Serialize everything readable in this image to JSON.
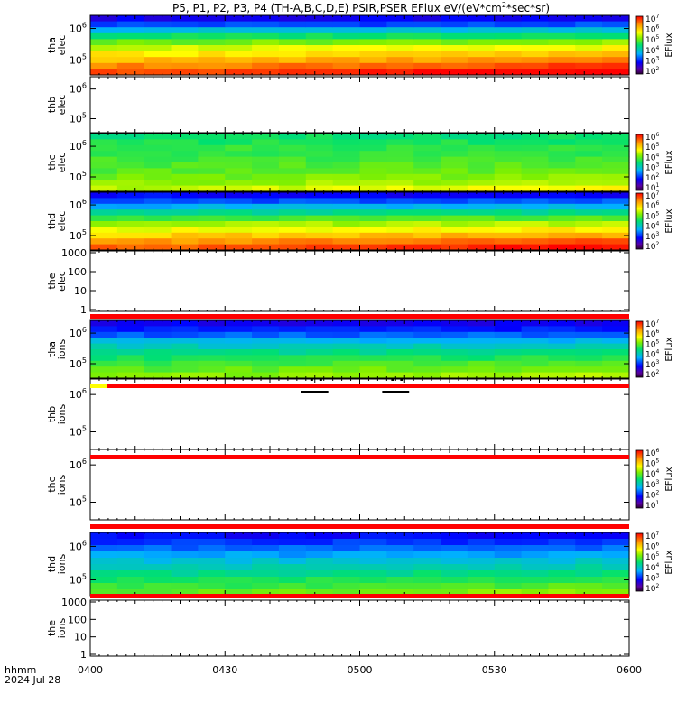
{
  "chart_data": {
    "type": "heatmap",
    "title": "P5, P1, P2, P3, P4 (TH-A,B,C,D,E) PSIR,PSER EFlux eV/(eV*cm",
    "title_sup": "2",
    "title_end": "*sec*sr)",
    "x_axis": {
      "ticks": [
        "0400",
        "0430",
        "0500",
        "0530",
        "0600"
      ],
      "label_line1": "hhmm",
      "label_line2": "2024 Jul 28",
      "range_hhmm": [
        "0400",
        "0600"
      ]
    },
    "colorbars": [
      {
        "panel": "tha-elec",
        "label": "EFlux",
        "decades": [
          2,
          3,
          4,
          5,
          6,
          7
        ]
      },
      {
        "panel": "thc-elec",
        "label": "EFlux",
        "decades": [
          1,
          2,
          3,
          4,
          5,
          6
        ]
      },
      {
        "panel": "thd-elec",
        "label": "EFlux",
        "decades": [
          2,
          3,
          4,
          5,
          6,
          7
        ]
      },
      {
        "panel": "tha-ions",
        "label": "EFlux",
        "decades": [
          2,
          3,
          4,
          5,
          6,
          7
        ]
      },
      {
        "panel": "thc-ions",
        "label": "EFlux",
        "decades": [
          1,
          2,
          3,
          4,
          5,
          6
        ]
      },
      {
        "panel": "thd-ions",
        "label": "EFlux",
        "decades": [
          2,
          3,
          4,
          5,
          6,
          7
        ]
      }
    ],
    "panels": [
      {
        "id": "tha-elec",
        "label": [
          "tha",
          "elec"
        ],
        "yticks": [
          "6",
          "5"
        ],
        "ytick_style": "exp",
        "colorbar": 0,
        "profile": [
          0.18,
          0.26,
          0.38,
          0.5,
          0.6,
          0.68,
          0.74,
          0.8,
          0.86,
          0.92
        ],
        "grad": [
          0.0,
          0.0,
          0.0,
          0.02,
          0.03,
          0.04,
          0.05,
          0.06,
          0.08,
          0.1
        ]
      },
      {
        "id": "thb-elec",
        "label": [
          "thb",
          "elec"
        ],
        "yticks": [
          "6",
          "5"
        ],
        "ytick_style": "exp",
        "colorbar": null
      },
      {
        "id": "thc-elec",
        "label": [
          "thc",
          "elec"
        ],
        "yticks": [
          "6",
          "5"
        ],
        "ytick_style": "exp",
        "colorbar": 1,
        "profile": [
          0.5,
          0.52,
          0.54,
          0.55,
          0.56,
          0.57,
          0.58,
          0.6,
          0.62,
          0.66
        ],
        "grad": [
          0.0,
          0.0,
          0.0,
          0.0,
          0.0,
          0.01,
          0.02,
          0.03,
          0.05,
          0.08
        ]
      },
      {
        "id": "thd-elec",
        "label": [
          "thd",
          "elec"
        ],
        "yticks": [
          "6",
          "5"
        ],
        "ytick_style": "exp",
        "colorbar": 2,
        "profile": [
          0.2,
          0.27,
          0.36,
          0.46,
          0.55,
          0.63,
          0.7,
          0.77,
          0.84,
          0.9
        ],
        "grad": [
          0.0,
          0.0,
          0.0,
          0.02,
          0.03,
          0.04,
          0.05,
          0.06,
          0.08,
          0.1
        ]
      },
      {
        "id": "the-elec",
        "label": [
          "the",
          "elec"
        ],
        "yticks": [
          "1000",
          "100",
          "10",
          "1"
        ],
        "ytick_style": "lin",
        "colorbar": null
      },
      {
        "id": "tha-ions",
        "label": [
          "tha",
          "ions"
        ],
        "yticks": [
          "6",
          "5"
        ],
        "ytick_style": "exp",
        "colorbar": 3,
        "profile": [
          0.18,
          0.22,
          0.28,
          0.36,
          0.42,
          0.47,
          0.51,
          0.55,
          0.58,
          0.61
        ],
        "grad": [
          0.0,
          0.0,
          0.0,
          0.0,
          0.01,
          0.01,
          0.02,
          0.03,
          0.04,
          0.05
        ]
      },
      {
        "id": "thb-ions",
        "label": [
          "thb",
          "ions"
        ],
        "yticks": [
          "6",
          "5"
        ],
        "ytick_style": "exp",
        "colorbar": null
      },
      {
        "id": "thc-ions",
        "label": [
          "thc",
          "ions"
        ],
        "yticks": [
          "6",
          "5"
        ],
        "ytick_style": "exp",
        "colorbar": 4
      },
      {
        "id": "thd-ions",
        "label": [
          "thd",
          "ions"
        ],
        "yticks": [
          "6",
          "5"
        ],
        "ytick_style": "exp",
        "colorbar": 5,
        "profile": [
          0.2,
          0.24,
          0.29,
          0.34,
          0.39,
          0.43,
          0.47,
          0.51,
          0.54,
          0.58
        ],
        "grad": [
          0.0,
          0.0,
          0.0,
          0.0,
          0.01,
          0.01,
          0.02,
          0.03,
          0.04,
          0.05
        ]
      },
      {
        "id": "the-ions",
        "label": [
          "the",
          "ions"
        ],
        "yticks": [
          "1000",
          "100",
          "10",
          "1"
        ],
        "ytick_style": "lin",
        "colorbar": null
      }
    ],
    "status_bars": [
      {
        "after_panel": "the-elec",
        "color": "#ff0000"
      },
      {
        "after_panel": "tha-ions",
        "color": "#ff0000",
        "start_color": "#ffff00"
      },
      {
        "after_panel": "thb-ions",
        "color": "#ff0000"
      },
      {
        "after_panel": "thc-ions",
        "color": "#ff0000"
      },
      {
        "after_panel": "thd-ions",
        "color": "#ff0000"
      }
    ],
    "gap_marks_hhmm": [
      [
        "0447",
        "0453"
      ],
      [
        "0505",
        "0511"
      ]
    ]
  }
}
